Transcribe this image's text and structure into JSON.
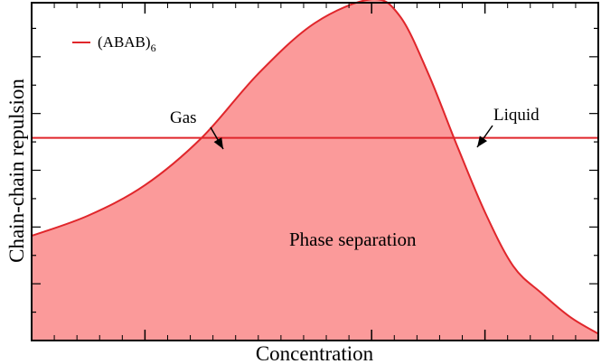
{
  "chart_data": {
    "type": "area",
    "title": "",
    "xlabel": "Concentration",
    "ylabel": "Chain-chain repulsion",
    "xscale": "log",
    "xlim": [
      0,
      100
    ],
    "ylim": [
      0,
      100
    ],
    "xtick_labels_shown": false,
    "ytick_labels_shown": false,
    "grid": false,
    "legend": {
      "placement": "top-left",
      "entries": [
        {
          "base": "(ABAB)",
          "subscript": "6"
        }
      ]
    },
    "series": [
      {
        "name": "(ABAB)6",
        "x": [
          0,
          10,
          20,
          30,
          40,
          50,
          60,
          65,
          70,
          75,
          80,
          85,
          90,
          95,
          100
        ],
        "y": [
          31,
          37,
          46,
          60,
          79,
          94,
          101,
          96,
          79,
          58,
          38,
          22,
          14,
          7,
          2
        ],
        "color": "#e0262b",
        "fill": "#fb9a9a"
      }
    ],
    "hline": {
      "y": 60,
      "color": "#e0262b"
    },
    "annotations": [
      {
        "text": "Gas",
        "x": 35,
        "y": 71
      },
      {
        "text": "Liquid",
        "x": 82,
        "y": 71
      },
      {
        "text": "Phase separation",
        "x": 60,
        "y": 32
      }
    ]
  }
}
